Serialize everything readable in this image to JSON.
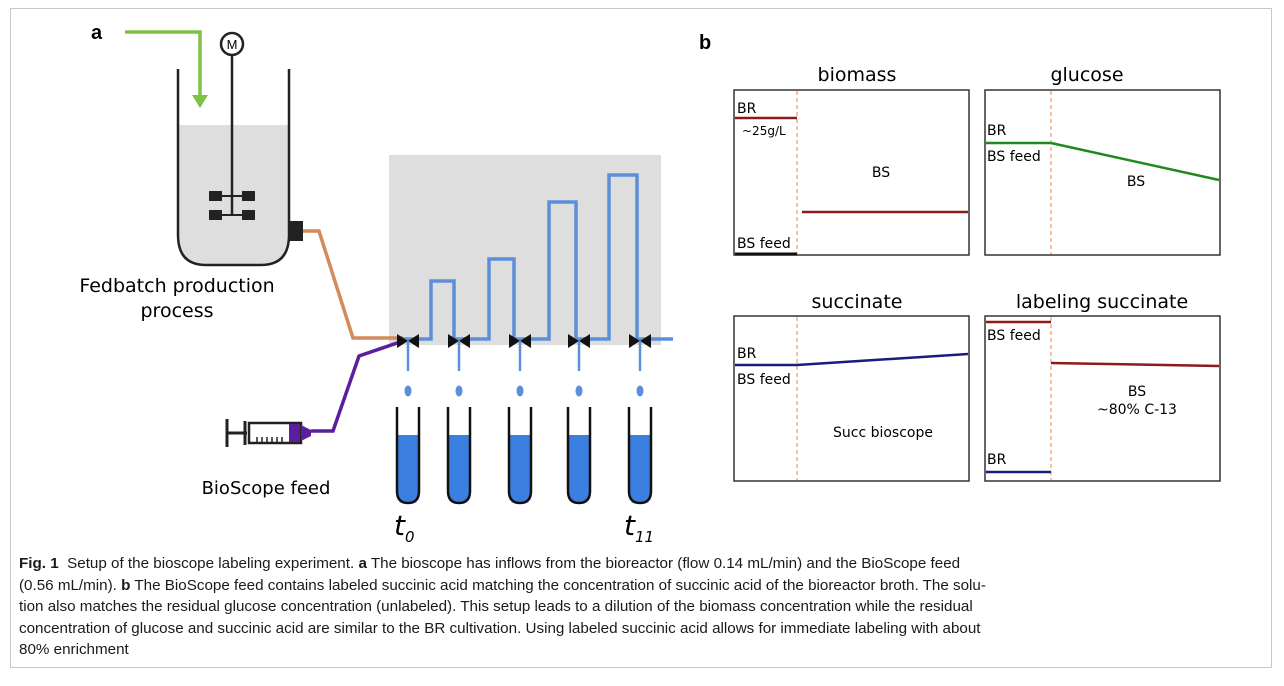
{
  "panel_a": {
    "label": "a",
    "motor_symbol": "M",
    "reactor_label_line1": "Fedbatch production",
    "reactor_label_line2": "process",
    "feed_label": "BioScope feed",
    "t_start": "t",
    "t_start_sub": "0",
    "t_end": "t",
    "t_end_sub": "11"
  },
  "panel_b": {
    "label": "b",
    "plots": {
      "biomass": {
        "title": "biomass",
        "br_label": "BR",
        "br_value": "~25g/L",
        "bs_label": "BS",
        "feed_label": "BS feed"
      },
      "glucose": {
        "title": "glucose",
        "br_label": "BR",
        "feed_label": "BS feed",
        "bs_label": "BS"
      },
      "succinate": {
        "title": "succinate",
        "br_label": "BR",
        "feed_label": "BS feed",
        "bs_label": "Succ bioscope"
      },
      "labeling": {
        "title": "labeling succinate",
        "feed_label": "BS feed",
        "bs_label": "BS",
        "bs_value": "~80% C-13",
        "br_label": "BR"
      }
    }
  },
  "colors": {
    "green_inflow": "#7dc242",
    "copper_line": "#d48a5a",
    "purple_line": "#5a1e9e",
    "blue_flow": "#5b8fdc",
    "liquid_blue": "#3b7fe0",
    "shade_grey": "#dedede",
    "maroon": "#8b1a1a",
    "dark_green": "#1e8a1e",
    "navy": "#1a1a80",
    "orange_dash": "#f0a070"
  },
  "caption": {
    "fig_label": "Fig. 1",
    "title": "Setup of the bioscope labeling experiment.",
    "a_marker": "a",
    "a_text_1": "The bioscope has inflows from the bioreactor (flow 0.14 mL/min) and the BioScope feed",
    "a_text_2": "(0.56 mL/min).",
    "b_marker": "b",
    "b_text_2": "The BioScope feed contains labeled succinic acid matching the concentration of succinic acid of the bioreactor broth. The solu-",
    "line_3": "tion also matches the residual glucose concentration (unlabeled). This setup leads to a dilution of the biomass concentration while the residual",
    "line_4": "concentration of glucose and succinic acid are similar to the BR cultivation. Using labeled succinic acid allows for immediate labeling with about",
    "line_5": "80% enrichment"
  }
}
